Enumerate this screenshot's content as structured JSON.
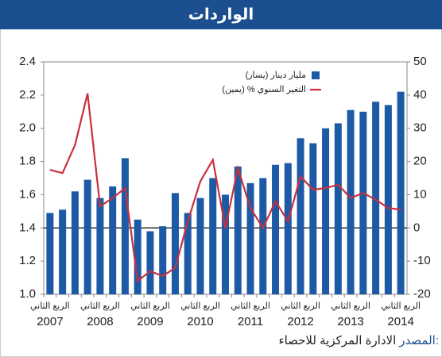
{
  "chart_data": {
    "type": "bar-line",
    "title": "الواردات",
    "categories": [
      "الربع الثاني",
      null,
      null,
      null,
      "الربع الثاني",
      null,
      null,
      null,
      "الربع الثاني",
      null,
      null,
      null,
      "الربع الثاني",
      null,
      null,
      null,
      "الربع الثاني",
      null,
      null,
      null,
      "الربع الثاني",
      null,
      null,
      null,
      "الربع الثاني",
      null,
      null,
      null,
      "الربع الثاني"
    ],
    "years": [
      2007,
      2008,
      2009,
      2010,
      2011,
      2012,
      2013,
      2014
    ],
    "series": [
      {
        "name": "مليار دينار (يسار)",
        "color": "#1d5aa5",
        "kind": "bar",
        "values": [
          1.49,
          1.51,
          1.62,
          1.69,
          1.58,
          1.65,
          1.82,
          1.45,
          1.38,
          1.41,
          1.61,
          1.49,
          1.58,
          1.7,
          1.6,
          1.77,
          1.67,
          1.7,
          1.78,
          1.79,
          1.94,
          1.91,
          2.0,
          2.03,
          2.11,
          2.1,
          2.16,
          2.14,
          2.22
        ]
      },
      {
        "name": "التغير السنوي % (يمين)",
        "color": "#c8303d",
        "kind": "line",
        "axis": "y2",
        "values": [
          17.5,
          16.5,
          25,
          40.5,
          6.5,
          9,
          12,
          -16,
          -13,
          -14.5,
          -12,
          2,
          14,
          20.5,
          0,
          18,
          6,
          0,
          8,
          2,
          15.5,
          11.5,
          12,
          13,
          9,
          10.5,
          8.5,
          6,
          5.5
        ]
      }
    ],
    "ylim": [
      1.0,
      2.4
    ],
    "yticks": [
      {
        "value": 1.0,
        "label": "1.0"
      },
      1.2,
      1.4,
      1.6,
      1.8,
      {
        "value": 2.0,
        "label": "2.0"
      },
      2.2,
      2.4
    ],
    "y2lim": [
      -20,
      50
    ],
    "y2ticks": [
      -20,
      -10,
      0,
      10,
      20,
      30,
      40,
      50
    ],
    "source_label": "المصدر:",
    "source": "الادارة المركزية للاحصاء"
  }
}
